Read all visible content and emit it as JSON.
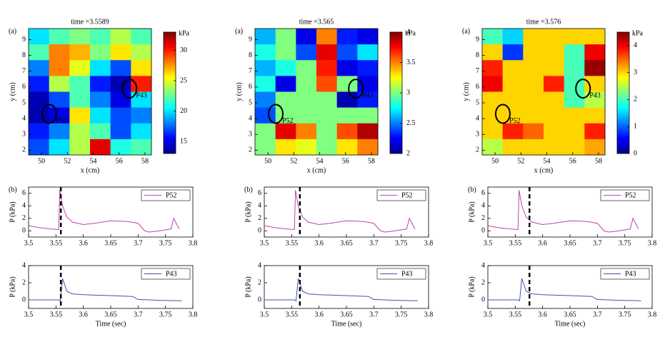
{
  "chart_data": [
    {
      "type": "contour",
      "title": "time =3.5589",
      "panel_label": "(a)",
      "x_label": "x (cm)",
      "y_label": "y (cm)",
      "xlim": [
        49,
        58.5
      ],
      "xticks": [
        50,
        52,
        54,
        56,
        58
      ],
      "ylim": [
        1.7,
        9.7
      ],
      "yticks": [
        2,
        3,
        4,
        5,
        6,
        7,
        8,
        9
      ],
      "z": [
        [
          20,
          22,
          23,
          22,
          24,
          22
        ],
        [
          22,
          28,
          27,
          23,
          26,
          24
        ],
        [
          18,
          28,
          25,
          20,
          17,
          26
        ],
        [
          16,
          24,
          22,
          16,
          14,
          30
        ],
        [
          14,
          17,
          22,
          18,
          15,
          20
        ],
        [
          14,
          15,
          26,
          20,
          17,
          18
        ],
        [
          16,
          18,
          24,
          22,
          17,
          20
        ],
        [
          17,
          20,
          24,
          31,
          21,
          22
        ]
      ],
      "colorbar": {
        "label": "kPa",
        "lim": [
          13,
          33
        ],
        "ticks": [
          15,
          20,
          25,
          30
        ]
      },
      "sensors": [
        {
          "name": "P52",
          "x": 50.6,
          "y": 4.3
        },
        {
          "name": "P43",
          "x": 56.8,
          "y": 5.9
        }
      ]
    },
    {
      "type": "contour",
      "title": "time =3.565",
      "panel_label": "(a)",
      "x_label": "x (cm)",
      "y_label": "y (cm)",
      "xlim": [
        49,
        58.5
      ],
      "xticks": [
        50,
        52,
        54,
        56,
        58
      ],
      "ylim": [
        1.7,
        9.7
      ],
      "yticks": [
        2,
        3,
        4,
        5,
        6,
        7,
        8,
        9
      ],
      "z": [
        [
          2.6,
          3.0,
          2.2,
          3.5,
          2.3,
          2.2
        ],
        [
          2.8,
          3.0,
          2.4,
          3.8,
          2.4,
          2.7
        ],
        [
          2.6,
          2.8,
          3.0,
          3.7,
          2.2,
          2.3
        ],
        [
          2.8,
          2.2,
          3.0,
          3.6,
          3.0,
          2.2
        ],
        [
          2.5,
          3.0,
          3.0,
          3.0,
          2.1,
          2.3
        ],
        [
          2.4,
          3.0,
          3.0,
          3.0,
          3.0,
          3.0
        ],
        [
          3.0,
          3.8,
          3.5,
          3.0,
          3.6,
          3.9
        ],
        [
          3.0,
          3.3,
          3.2,
          3.0,
          3.3,
          3.5
        ]
      ],
      "colorbar": {
        "label": "kPa",
        "lim": [
          2,
          4
        ],
        "ticks": [
          2,
          2.5,
          3,
          3.5,
          4
        ]
      },
      "sensors": [
        {
          "name": "P52",
          "x": 50.6,
          "y": 4.3
        },
        {
          "name": "P43",
          "x": 56.8,
          "y": 5.9
        }
      ]
    },
    {
      "type": "contour",
      "title": "time =3.576",
      "panel_label": "(a)",
      "x_label": "x (cm)",
      "y_label": "y (cm)",
      "xlim": [
        49,
        58.5
      ],
      "xticks": [
        50,
        52,
        54,
        56,
        58
      ],
      "ylim": [
        1.7,
        9.7
      ],
      "yticks": [
        2,
        3,
        4,
        5,
        6,
        7,
        8,
        9
      ],
      "z": [
        [
          2.0,
          1.5,
          3.0,
          3.0,
          3.0,
          3.0
        ],
        [
          3.0,
          0.8,
          3.0,
          3.0,
          2.0,
          4.0
        ],
        [
          3.8,
          3.0,
          3.0,
          3.0,
          2.0,
          4.4
        ],
        [
          4.0,
          3.0,
          3.0,
          3.8,
          2.0,
          3.0
        ],
        [
          3.0,
          3.0,
          3.0,
          3.0,
          2.0,
          2.5
        ],
        [
          3.0,
          3.0,
          3.0,
          3.0,
          3.0,
          3.0
        ],
        [
          3.0,
          3.8,
          3.5,
          3.0,
          3.0,
          3.8
        ],
        [
          2.5,
          3.0,
          3.0,
          3.0,
          3.0,
          3.2
        ]
      ],
      "colorbar": {
        "label": "kPa",
        "lim": [
          0,
          4.5
        ],
        "ticks": [
          0,
          1,
          2,
          3,
          4
        ]
      },
      "sensors": [
        {
          "name": "P52",
          "x": 50.6,
          "y": 4.3
        },
        {
          "name": "P43",
          "x": 56.8,
          "y": 5.9
        }
      ]
    },
    {
      "type": "line",
      "panel_label": "(b)",
      "y_label": "P (kPa)",
      "xlim": [
        3.5,
        3.8
      ],
      "xticks": [
        3.5,
        3.55,
        3.6,
        3.65,
        3.7,
        3.75,
        3.8
      ],
      "ylim": [
        -1,
        7
      ],
      "yticks": [
        0,
        2,
        4,
        6
      ],
      "vline": 3.5589,
      "x": [
        3.5,
        3.52,
        3.54,
        3.555,
        3.557,
        3.562,
        3.57,
        3.58,
        3.6,
        3.62,
        3.65,
        3.68,
        3.7,
        3.712,
        3.72,
        3.74,
        3.76,
        3.765,
        3.775
      ],
      "series": [
        {
          "name": "P52",
          "color": "#c040b0",
          "values": [
            0.8,
            0.5,
            0.3,
            0.2,
            6.5,
            4.0,
            2.2,
            1.4,
            1.0,
            1.2,
            1.6,
            1.5,
            1.2,
            0.0,
            -0.2,
            0.0,
            0.3,
            2.0,
            0.3
          ]
        }
      ]
    },
    {
      "type": "line",
      "panel_label": "(b)",
      "y_label": "P (kPa)",
      "xlim": [
        3.5,
        3.8
      ],
      "xticks": [
        3.5,
        3.55,
        3.6,
        3.65,
        3.7,
        3.75,
        3.8
      ],
      "ylim": [
        -1,
        7
      ],
      "yticks": [
        0,
        2,
        4,
        6
      ],
      "vline": 3.565,
      "x": [
        3.5,
        3.52,
        3.54,
        3.555,
        3.557,
        3.562,
        3.57,
        3.58,
        3.6,
        3.62,
        3.65,
        3.68,
        3.7,
        3.712,
        3.72,
        3.74,
        3.76,
        3.765,
        3.775
      ],
      "series": [
        {
          "name": "P52",
          "color": "#c040b0",
          "values": [
            0.8,
            0.5,
            0.3,
            0.2,
            6.5,
            4.0,
            2.2,
            1.4,
            1.0,
            1.2,
            1.6,
            1.5,
            1.2,
            0.0,
            -0.2,
            0.0,
            0.3,
            2.0,
            0.3
          ]
        }
      ]
    },
    {
      "type": "line",
      "panel_label": "(b)",
      "y_label": "P (kPa)",
      "xlim": [
        3.5,
        3.8
      ],
      "xticks": [
        3.5,
        3.55,
        3.6,
        3.65,
        3.7,
        3.75,
        3.8
      ],
      "ylim": [
        -1,
        7
      ],
      "yticks": [
        0,
        2,
        4,
        6
      ],
      "vline": 3.576,
      "x": [
        3.5,
        3.52,
        3.54,
        3.555,
        3.557,
        3.562,
        3.57,
        3.58,
        3.6,
        3.62,
        3.65,
        3.68,
        3.7,
        3.712,
        3.72,
        3.74,
        3.76,
        3.765,
        3.775
      ],
      "series": [
        {
          "name": "P52",
          "color": "#c040b0",
          "values": [
            0.8,
            0.5,
            0.3,
            0.2,
            6.5,
            4.0,
            2.2,
            1.4,
            1.0,
            1.2,
            1.6,
            1.5,
            1.2,
            0.0,
            -0.2,
            0.0,
            0.3,
            2.0,
            0.3
          ]
        }
      ]
    },
    {
      "type": "line",
      "x_label": "Time (sec)",
      "y_label": "P (kPa)",
      "xlim": [
        3.5,
        3.8
      ],
      "xticks": [
        3.5,
        3.55,
        3.6,
        3.65,
        3.7,
        3.75,
        3.8
      ],
      "ylim": [
        -1,
        4
      ],
      "yticks": [
        0,
        2,
        4
      ],
      "vline": 3.5589,
      "x": [
        3.5,
        3.53,
        3.555,
        3.558,
        3.562,
        3.57,
        3.58,
        3.6,
        3.65,
        3.69,
        3.7,
        3.74,
        3.78
      ],
      "series": [
        {
          "name": "P43",
          "color": "#4050b0",
          "values": [
            0,
            0,
            0,
            -0.1,
            2.5,
            1.0,
            0.7,
            0.6,
            0.5,
            0.4,
            0.05,
            -0.05,
            -0.1
          ]
        }
      ]
    },
    {
      "type": "line",
      "x_label": "Time (sec)",
      "y_label": "P (kPa)",
      "xlim": [
        3.5,
        3.8
      ],
      "xticks": [
        3.5,
        3.55,
        3.6,
        3.65,
        3.7,
        3.75,
        3.8
      ],
      "ylim": [
        -1,
        4
      ],
      "yticks": [
        0,
        2,
        4
      ],
      "vline": 3.565,
      "x": [
        3.5,
        3.53,
        3.555,
        3.558,
        3.562,
        3.57,
        3.58,
        3.6,
        3.65,
        3.69,
        3.7,
        3.74,
        3.78
      ],
      "series": [
        {
          "name": "P43",
          "color": "#4050b0",
          "values": [
            0,
            0,
            0,
            -0.1,
            2.5,
            1.0,
            0.7,
            0.6,
            0.5,
            0.4,
            0.05,
            -0.05,
            -0.1
          ]
        }
      ]
    },
    {
      "type": "line",
      "x_label": "Time (sec)",
      "y_label": "P (kPa)",
      "xlim": [
        3.5,
        3.8
      ],
      "xticks": [
        3.5,
        3.55,
        3.6,
        3.65,
        3.7,
        3.75,
        3.8
      ],
      "ylim": [
        -1,
        4
      ],
      "yticks": [
        0,
        2,
        4
      ],
      "vline": 3.576,
      "x": [
        3.5,
        3.53,
        3.555,
        3.558,
        3.562,
        3.57,
        3.58,
        3.6,
        3.65,
        3.69,
        3.7,
        3.74,
        3.78
      ],
      "series": [
        {
          "name": "P43",
          "color": "#4050b0",
          "values": [
            0,
            0,
            0,
            -0.1,
            2.5,
            1.0,
            0.7,
            0.6,
            0.5,
            0.4,
            0.05,
            -0.05,
            -0.1
          ]
        }
      ]
    }
  ]
}
